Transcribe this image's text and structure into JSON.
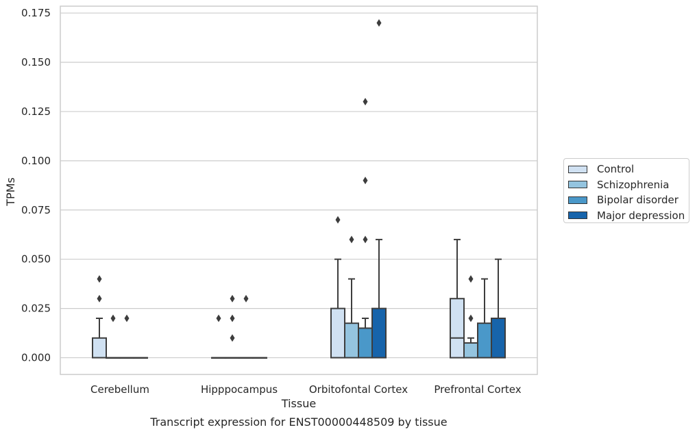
{
  "chart_data": {
    "type": "box",
    "title": "Transcript expression for ENST00000448509 by tissue",
    "xlabel": "Tissue",
    "ylabel": "TPMs",
    "ylim": [
      -0.0085,
      0.1785
    ],
    "yticks": [
      "0.000",
      "0.025",
      "0.050",
      "0.075",
      "0.100",
      "0.125",
      "0.150",
      "0.175"
    ],
    "grid": true,
    "legend_position": "right",
    "categories": [
      "Cerebellum",
      "Hipppocampus",
      "Orbitofontal Cortex",
      "Prefrontal Cortex"
    ],
    "series": [
      {
        "name": "Control",
        "color": "#d0e1f2",
        "boxes": [
          {
            "q1": 0.0,
            "median": 0.0,
            "q3": 0.01,
            "whisker_low": 0.0,
            "whisker_high": 0.02,
            "outliers": [
              0.03,
              0.04
            ]
          },
          {
            "q1": 0.0,
            "median": 0.0,
            "q3": 0.0,
            "whisker_low": 0.0,
            "whisker_high": 0.0,
            "outliers": [
              0.02
            ]
          },
          {
            "q1": 0.0,
            "median": 0.0,
            "q3": 0.025,
            "whisker_low": 0.0,
            "whisker_high": 0.05,
            "outliers": [
              0.07
            ]
          },
          {
            "q1": 0.0,
            "median": 0.01,
            "q3": 0.03,
            "whisker_low": 0.0,
            "whisker_high": 0.06,
            "outliers": []
          }
        ]
      },
      {
        "name": "Schizophrenia",
        "color": "#94c4df",
        "boxes": [
          {
            "q1": 0.0,
            "median": 0.0,
            "q3": 0.0,
            "whisker_low": 0.0,
            "whisker_high": 0.0,
            "outliers": [
              0.02
            ]
          },
          {
            "q1": 0.0,
            "median": 0.0,
            "q3": 0.0,
            "whisker_low": 0.0,
            "whisker_high": 0.0,
            "outliers": [
              0.01,
              0.02,
              0.03
            ]
          },
          {
            "q1": 0.0,
            "median": 0.0,
            "q3": 0.0175,
            "whisker_low": 0.0,
            "whisker_high": 0.04,
            "outliers": [
              0.06
            ]
          },
          {
            "q1": 0.0,
            "median": 0.0,
            "q3": 0.0075,
            "whisker_low": 0.0,
            "whisker_high": 0.01,
            "outliers": [
              0.02,
              0.04
            ]
          }
        ]
      },
      {
        "name": "Bipolar disorder",
        "color": "#4a98c9",
        "boxes": [
          {
            "q1": 0.0,
            "median": 0.0,
            "q3": 0.0,
            "whisker_low": 0.0,
            "whisker_high": 0.0,
            "outliers": [
              0.02
            ]
          },
          {
            "q1": 0.0,
            "median": 0.0,
            "q3": 0.0,
            "whisker_low": 0.0,
            "whisker_high": 0.0,
            "outliers": [
              0.03
            ]
          },
          {
            "q1": 0.0,
            "median": 0.0,
            "q3": 0.015,
            "whisker_low": 0.0,
            "whisker_high": 0.02,
            "outliers": [
              0.06,
              0.09,
              0.13
            ]
          },
          {
            "q1": 0.0,
            "median": 0.0,
            "q3": 0.0175,
            "whisker_low": 0.0,
            "whisker_high": 0.04,
            "outliers": []
          }
        ]
      },
      {
        "name": "Major depression",
        "color": "#1764ab",
        "boxes": [
          {
            "q1": 0.0,
            "median": 0.0,
            "q3": 0.0,
            "whisker_low": 0.0,
            "whisker_high": 0.0,
            "outliers": []
          },
          {
            "q1": 0.0,
            "median": 0.0,
            "q3": 0.0,
            "whisker_low": 0.0,
            "whisker_high": 0.0,
            "outliers": []
          },
          {
            "q1": 0.0,
            "median": 0.0,
            "q3": 0.025,
            "whisker_low": 0.0,
            "whisker_high": 0.06,
            "outliers": [
              0.17
            ]
          },
          {
            "q1": 0.0,
            "median": 0.0,
            "q3": 0.02,
            "whisker_low": 0.0,
            "whisker_high": 0.05,
            "outliers": []
          }
        ]
      }
    ]
  }
}
